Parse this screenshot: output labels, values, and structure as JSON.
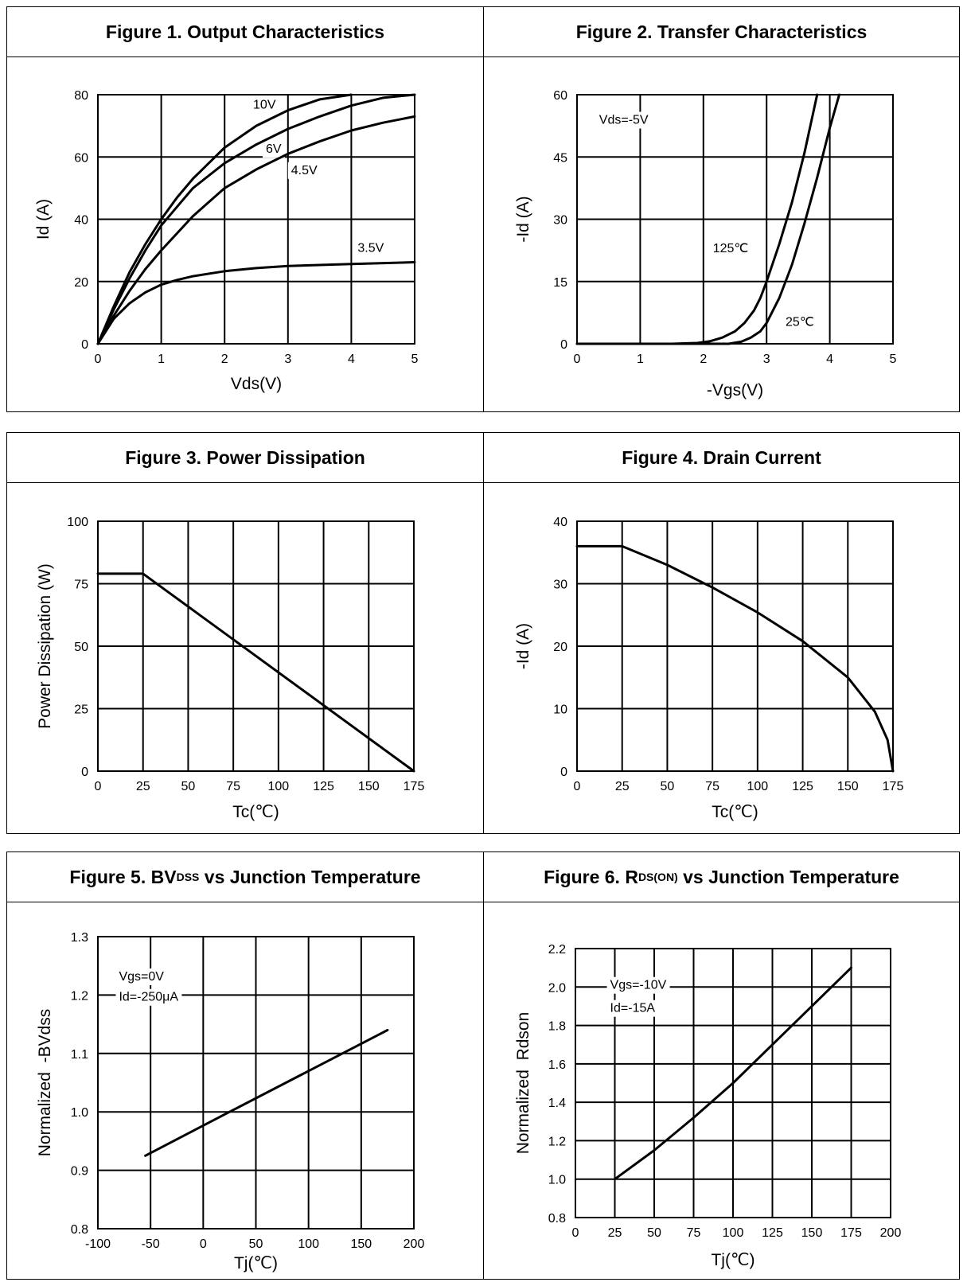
{
  "chart_data": [
    {
      "id": "fig1",
      "type": "line",
      "title": "Figure 1. Output Characteristics",
      "xlabel": "Vds(V)",
      "ylabel": "Id (A)",
      "xlim": [
        0,
        5
      ],
      "ylim": [
        0,
        80
      ],
      "xticks": [
        0,
        1,
        2,
        3,
        4,
        5
      ],
      "yticks": [
        0,
        20,
        40,
        60,
        80
      ],
      "grid": true,
      "series": [
        {
          "name": "10V",
          "x": [
            0,
            0.25,
            0.5,
            0.75,
            1,
            1.25,
            1.5,
            2,
            2.5,
            3,
            3.5,
            4
          ],
          "y": [
            0,
            12,
            23,
            32,
            40,
            47,
            53,
            63,
            70,
            75,
            78.5,
            80
          ]
        },
        {
          "name": "6V",
          "x": [
            0,
            0.25,
            0.5,
            0.75,
            1,
            1.25,
            1.5,
            2,
            2.5,
            3,
            3.5,
            4,
            4.5,
            5
          ],
          "y": [
            0,
            11,
            21,
            30,
            38,
            44,
            50,
            58,
            64,
            69,
            73,
            76.5,
            79,
            80
          ]
        },
        {
          "name": "4.5V",
          "x": [
            0,
            0.25,
            0.5,
            0.75,
            1,
            1.5,
            2,
            2.5,
            3,
            3.5,
            4,
            4.5,
            5
          ],
          "y": [
            0,
            9,
            17,
            24,
            30,
            41,
            50,
            56,
            61,
            65,
            68.5,
            71,
            73
          ]
        },
        {
          "name": "3.5V",
          "x": [
            0,
            0.25,
            0.5,
            0.75,
            1,
            1.25,
            1.5,
            2,
            2.5,
            3,
            4,
            5
          ],
          "y": [
            0,
            8,
            13,
            16.5,
            19,
            20.5,
            21.7,
            23.3,
            24.3,
            25,
            25.6,
            26.2
          ]
        }
      ],
      "annotations": [
        {
          "text": "10V",
          "x": 2.45,
          "y": 75.5
        },
        {
          "text": "6V",
          "x": 2.65,
          "y": 61.3
        },
        {
          "text": "4.5V",
          "x": 3.05,
          "y": 54.5
        },
        {
          "text": "3.5V",
          "x": 4.1,
          "y": 29.5
        }
      ]
    },
    {
      "id": "fig2",
      "type": "line",
      "title": "Figure 2. Transfer Characteristics",
      "xlabel": "-Vgs(V)",
      "ylabel": "-Id (A)",
      "xlim": [
        0,
        5
      ],
      "ylim": [
        0,
        60
      ],
      "xticks": [
        0,
        1,
        2,
        3,
        4,
        5
      ],
      "yticks": [
        0,
        15,
        30,
        45,
        60
      ],
      "grid": true,
      "series": [
        {
          "name": "125℃",
          "x": [
            0,
            1.5,
            1.9,
            2.1,
            2.3,
            2.5,
            2.65,
            2.8,
            2.9,
            3.0,
            3.2,
            3.4,
            3.6,
            3.8
          ],
          "y": [
            0,
            0,
            0.2,
            0.6,
            1.5,
            3,
            5,
            8,
            11,
            15,
            24,
            34,
            46,
            60
          ]
        },
        {
          "name": "25℃",
          "x": [
            0,
            2.4,
            2.6,
            2.75,
            2.9,
            3.0,
            3.1,
            3.2,
            3.4,
            3.6,
            3.8,
            4.0,
            4.15
          ],
          "y": [
            0,
            0,
            0.5,
            1.5,
            3,
            5,
            8,
            11,
            19,
            29,
            40,
            52,
            60
          ]
        }
      ],
      "annotations": [
        {
          "text": "Vds=-5V",
          "x": 0.35,
          "y": 53
        },
        {
          "text": "125℃",
          "x": 2.15,
          "y": 22
        },
        {
          "text": "25℃",
          "x": 3.3,
          "y": 4.3
        }
      ]
    },
    {
      "id": "fig3",
      "type": "line",
      "title": "Figure 3. Power Dissipation",
      "xlabel": "Tc(℃)",
      "ylabel": "Power Dissipation (W)",
      "xlim": [
        0,
        175
      ],
      "ylim": [
        0,
        100
      ],
      "xticks": [
        0,
        25,
        50,
        75,
        100,
        125,
        150,
        175
      ],
      "yticks": [
        0,
        25,
        50,
        75,
        100
      ],
      "grid": true,
      "series": [
        {
          "name": "",
          "x": [
            0,
            25,
            175
          ],
          "y": [
            79,
            79,
            0
          ]
        }
      ]
    },
    {
      "id": "fig4",
      "type": "line",
      "title": "Figure 4. Drain Current",
      "xlabel": "Tc(℃)",
      "ylabel": "-Id (A)",
      "xlim": [
        0,
        175
      ],
      "ylim": [
        0,
        40
      ],
      "xticks": [
        0,
        25,
        50,
        75,
        100,
        125,
        150,
        175
      ],
      "yticks": [
        0,
        10,
        20,
        30,
        40
      ],
      "grid": true,
      "series": [
        {
          "name": "",
          "x": [
            0,
            25,
            50,
            75,
            100,
            125,
            150,
            165,
            172,
            175
          ],
          "y": [
            36,
            36,
            33,
            29.4,
            25.4,
            20.8,
            15,
            9.5,
            5,
            0
          ]
        }
      ]
    },
    {
      "id": "fig5",
      "type": "line",
      "title": "Figure 5. BV",
      "title_sub": "DSS",
      "title_after": " vs Junction Temperature",
      "xlabel": "Tj(℃)",
      "ylabel": "Normalized  -BVdss",
      "xlim": [
        -100,
        200
      ],
      "ylim": [
        0.8,
        1.3
      ],
      "xticks": [
        -100,
        -50,
        0,
        50,
        100,
        150,
        200
      ],
      "yticks": [
        0.8,
        0.9,
        1.0,
        1.1,
        1.2,
        1.3
      ],
      "grid": true,
      "series": [
        {
          "name": "",
          "x": [
            -55,
            25,
            100,
            175
          ],
          "y": [
            0.925,
            1.0,
            1.07,
            1.14
          ]
        }
      ],
      "annotations": [
        {
          "text": "Vgs=0V",
          "x": -80,
          "y": 1.225
        },
        {
          "text": "Id=-250μA",
          "x": -80,
          "y": 1.19
        }
      ]
    },
    {
      "id": "fig6",
      "type": "line",
      "title": "Figure 6. R",
      "title_sub": "DS(ON)",
      "title_after": " vs Junction Temperature",
      "xlabel": "Tj(℃)",
      "ylabel": "Normalized  Rdson",
      "xlim": [
        0,
        200
      ],
      "ylim": [
        0.8,
        2.2
      ],
      "xticks": [
        0,
        25,
        50,
        75,
        100,
        125,
        150,
        175,
        200
      ],
      "yticks": [
        0.8,
        1.0,
        1.2,
        1.4,
        1.6,
        1.8,
        2.0,
        2.2
      ],
      "grid": true,
      "series": [
        {
          "name": "",
          "x": [
            25,
            50,
            75,
            100,
            125,
            150,
            175
          ],
          "y": [
            1.0,
            1.15,
            1.32,
            1.5,
            1.7,
            1.9,
            2.1
          ]
        }
      ],
      "annotations": [
        {
          "text": "Vgs=-10V",
          "x": 22,
          "y": 1.99
        },
        {
          "text": "Id=-15A",
          "x": 22,
          "y": 1.87
        }
      ]
    }
  ]
}
